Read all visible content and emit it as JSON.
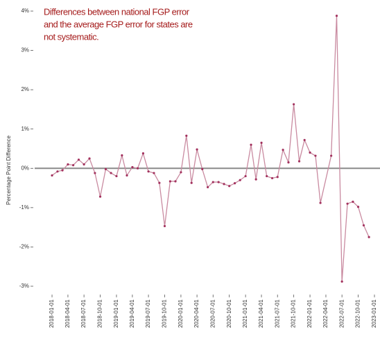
{
  "chart_data": {
    "type": "line",
    "annotation": [
      "Differences between national FGP error",
      "and the average FGP error for states are",
      "not systematic."
    ],
    "ylabel": "Percentage Point Difference",
    "x": [
      "2018-01-01",
      "2018-02-01",
      "2018-03-01",
      "2018-04-01",
      "2018-05-01",
      "2018-06-01",
      "2018-07-01",
      "2018-08-01",
      "2018-09-01",
      "2018-10-01",
      "2018-11-01",
      "2018-12-01",
      "2019-01-01",
      "2019-02-01",
      "2019-03-01",
      "2019-04-01",
      "2019-05-01",
      "2019-06-01",
      "2019-07-01",
      "2019-08-01",
      "2019-09-01",
      "2019-10-01",
      "2019-11-01",
      "2019-12-01",
      "2020-01-01",
      "2020-02-01",
      "2020-03-01",
      "2020-04-01",
      "2020-05-01",
      "2020-06-01",
      "2020-07-01",
      "2020-08-01",
      "2020-09-01",
      "2020-10-01",
      "2020-11-01",
      "2020-12-01",
      "2021-01-01",
      "2021-02-01",
      "2021-03-01",
      "2021-04-01",
      "2021-05-01",
      "2021-06-01",
      "2021-07-01",
      "2021-08-01",
      "2021-09-01",
      "2021-10-01",
      "2021-11-01",
      "2021-12-01",
      "2022-01-01",
      "2022-02-01",
      "2022-03-01",
      "2022-05-01",
      "2022-06-01",
      "2022-07-01",
      "2022-08-01",
      "2022-09-01",
      "2022-10-01",
      "2022-11-01",
      "2022-12-01"
    ],
    "series": [
      {
        "color": "#c98aa0",
        "marker_color": "#a3325e",
        "values": [
          -0.18,
          -0.08,
          -0.05,
          0.1,
          0.08,
          0.22,
          0.1,
          0.25,
          -0.12,
          -0.72,
          -0.02,
          -0.12,
          -0.2,
          0.33,
          -0.18,
          0.03,
          0.0,
          0.38,
          -0.08,
          -0.12,
          -0.37,
          -1.47,
          -0.33,
          -0.33,
          -0.1,
          0.83,
          -0.37,
          0.48,
          -0.02,
          -0.48,
          -0.35,
          -0.35,
          -0.4,
          -0.45,
          -0.38,
          -0.3,
          -0.2,
          0.6,
          -0.28,
          0.65,
          -0.2,
          -0.25,
          -0.22,
          0.47,
          0.15,
          1.63,
          0.18,
          0.72,
          0.4,
          0.32,
          -0.88,
          0.32,
          3.88,
          -2.88,
          -0.9,
          -0.85,
          -0.98,
          -1.45,
          -1.75
        ]
      }
    ],
    "xlim": [
      "2017-11-01",
      "2023-01-01"
    ],
    "xticks": [
      "2018-01-01",
      "2018-04-01",
      "2018-07-01",
      "2018-10-01",
      "2019-01-01",
      "2019-04-01",
      "2019-07-01",
      "2019-10-01",
      "2020-01-01",
      "2020-04-01",
      "2020-07-01",
      "2020-10-01",
      "2021-01-01",
      "2021-04-01",
      "2021-07-01",
      "2021-10-01",
      "2022-01-01",
      "2022-04-01",
      "2022-07-01",
      "2022-10-01",
      "2023-01-01"
    ],
    "ylim": [
      -3.2,
      4.15
    ],
    "yticks": [
      {
        "value": -3,
        "label": "-3%"
      },
      {
        "value": -2,
        "label": "-2%"
      },
      {
        "value": -1,
        "label": "-1%"
      },
      {
        "value": 0,
        "label": "0%"
      },
      {
        "value": 1,
        "label": "1%"
      },
      {
        "value": 2,
        "label": "2%"
      },
      {
        "value": 3,
        "label": "3%"
      },
      {
        "value": 4,
        "label": "4%"
      }
    ],
    "hline": 0,
    "hline_color": "#8a8a8a",
    "annotation_color": "#a51c1c"
  }
}
